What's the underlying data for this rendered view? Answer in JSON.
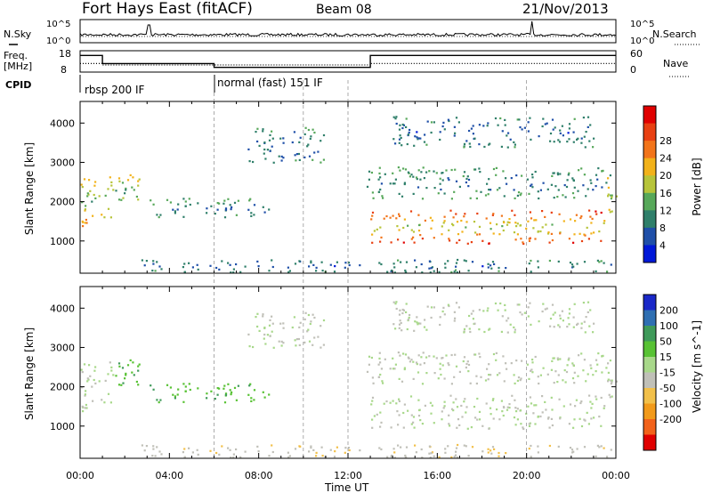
{
  "header": {
    "station": "Fort Hays East (fitACF)",
    "beam": "Beam 08",
    "date": "21/Nov/2013"
  },
  "noise_panel": {
    "left_label": "N.Sky",
    "right_label": "N.Search",
    "left_ticks": [
      "10^5",
      "10^0"
    ],
    "right_ticks": [
      "10^5",
      "10^0"
    ]
  },
  "freq_panel": {
    "left_label": "Freq.",
    "left_units": "[MHz]",
    "right_label": "Nave",
    "left_ticks": [
      "18",
      "8"
    ],
    "right_ticks": [
      "60",
      "0"
    ]
  },
  "cpid": {
    "label": "CPID",
    "segments": [
      {
        "start_hour": 0.0,
        "end_hour": 6.0,
        "text": "rbsp 200 IF"
      },
      {
        "start_hour": 6.0,
        "end_hour": 24.0,
        "text": "normal (fast) 151 IF"
      }
    ]
  },
  "axes": {
    "y_label": "Slant Range [km]",
    "x_label": "Time UT",
    "y_ticks": [
      "1000",
      "2000",
      "3000",
      "4000"
    ],
    "x_ticks": [
      "00:00",
      "04:00",
      "08:00",
      "12:00",
      "16:00",
      "20:00",
      "00:00"
    ]
  },
  "power_scale": {
    "label": "Power [dB]",
    "ticks": [
      "4",
      "8",
      "12",
      "16",
      "20",
      "24",
      "28"
    ],
    "colors": [
      "#0018d8",
      "#1f4fa8",
      "#2f7f6a",
      "#57a85a",
      "#b7c43a",
      "#f2b21a",
      "#f2741a",
      "#e84012",
      "#e00000"
    ]
  },
  "velocity_scale": {
    "label": "Velocity [m s^-1]",
    "ticks": [
      "200",
      "100",
      "50",
      "15",
      "-15",
      "-50",
      "-100",
      "-200"
    ],
    "colors": [
      "#1a28c8",
      "#2f6fb2",
      "#3f9a5a",
      "#58c234",
      "#a8d88a",
      "#c0c0b8",
      "#f2c04a",
      "#f29a1a",
      "#f2621a",
      "#e00000"
    ]
  },
  "chart_data": {
    "type": "heatmap",
    "x_range_hours": [
      0,
      24
    ],
    "y_range_km": [
      180,
      4550
    ],
    "dashed_time_marks_hours": [
      6,
      10,
      12,
      20
    ],
    "frequency_mhz": {
      "segments": [
        {
          "start_hour": 0.0,
          "end_hour": 1.0,
          "value": 15.8
        },
        {
          "start_hour": 1.0,
          "end_hour": 6.0,
          "value": 12.0
        },
        {
          "start_hour": 6.0,
          "end_hour": 13.0,
          "value": 10.2
        },
        {
          "start_hour": 13.0,
          "end_hour": 24.0,
          "value": 15.8
        }
      ]
    },
    "nave": {
      "segments": [
        {
          "start_hour": 0.0,
          "end_hour": 1.0,
          "value": 24
        },
        {
          "start_hour": 1.0,
          "end_hour": 13.0,
          "value": 20
        },
        {
          "start_hour": 13.0,
          "end_hour": 24.0,
          "value": 24
        }
      ]
    },
    "echo_regions": [
      {
        "t0": 0.0,
        "t1": 1.5,
        "r0": 1400,
        "r1": 2700,
        "power_db": 20,
        "velocity": -15
      },
      {
        "t0": 1.5,
        "t1": 2.8,
        "r0": 1900,
        "r1": 2750,
        "power_db": 18,
        "velocity": 40
      },
      {
        "t0": 3.0,
        "t1": 8.5,
        "r0": 1600,
        "r1": 2100,
        "power_db": 10,
        "velocity": 40
      },
      {
        "t0": 2.5,
        "t1": 24.0,
        "r0": 220,
        "r1": 550,
        "power_db": 8,
        "velocity": -40
      },
      {
        "t0": 7.5,
        "t1": 11.0,
        "r0": 3000,
        "r1": 3900,
        "power_db": 8,
        "velocity": -15
      },
      {
        "t0": 12.5,
        "t1": 23.8,
        "r0": 2100,
        "r1": 2900,
        "power_db": 10,
        "velocity": -15
      },
      {
        "t0": 13.0,
        "t1": 23.5,
        "r0": 950,
        "r1": 1800,
        "power_db": 26,
        "velocity": -15
      },
      {
        "t0": 14.0,
        "t1": 23.0,
        "r0": 3400,
        "r1": 4200,
        "power_db": 8,
        "velocity": -15
      },
      {
        "t0": 23.5,
        "t1": 24.0,
        "r0": 1400,
        "r1": 2700,
        "power_db": 20,
        "velocity": -15
      }
    ]
  }
}
